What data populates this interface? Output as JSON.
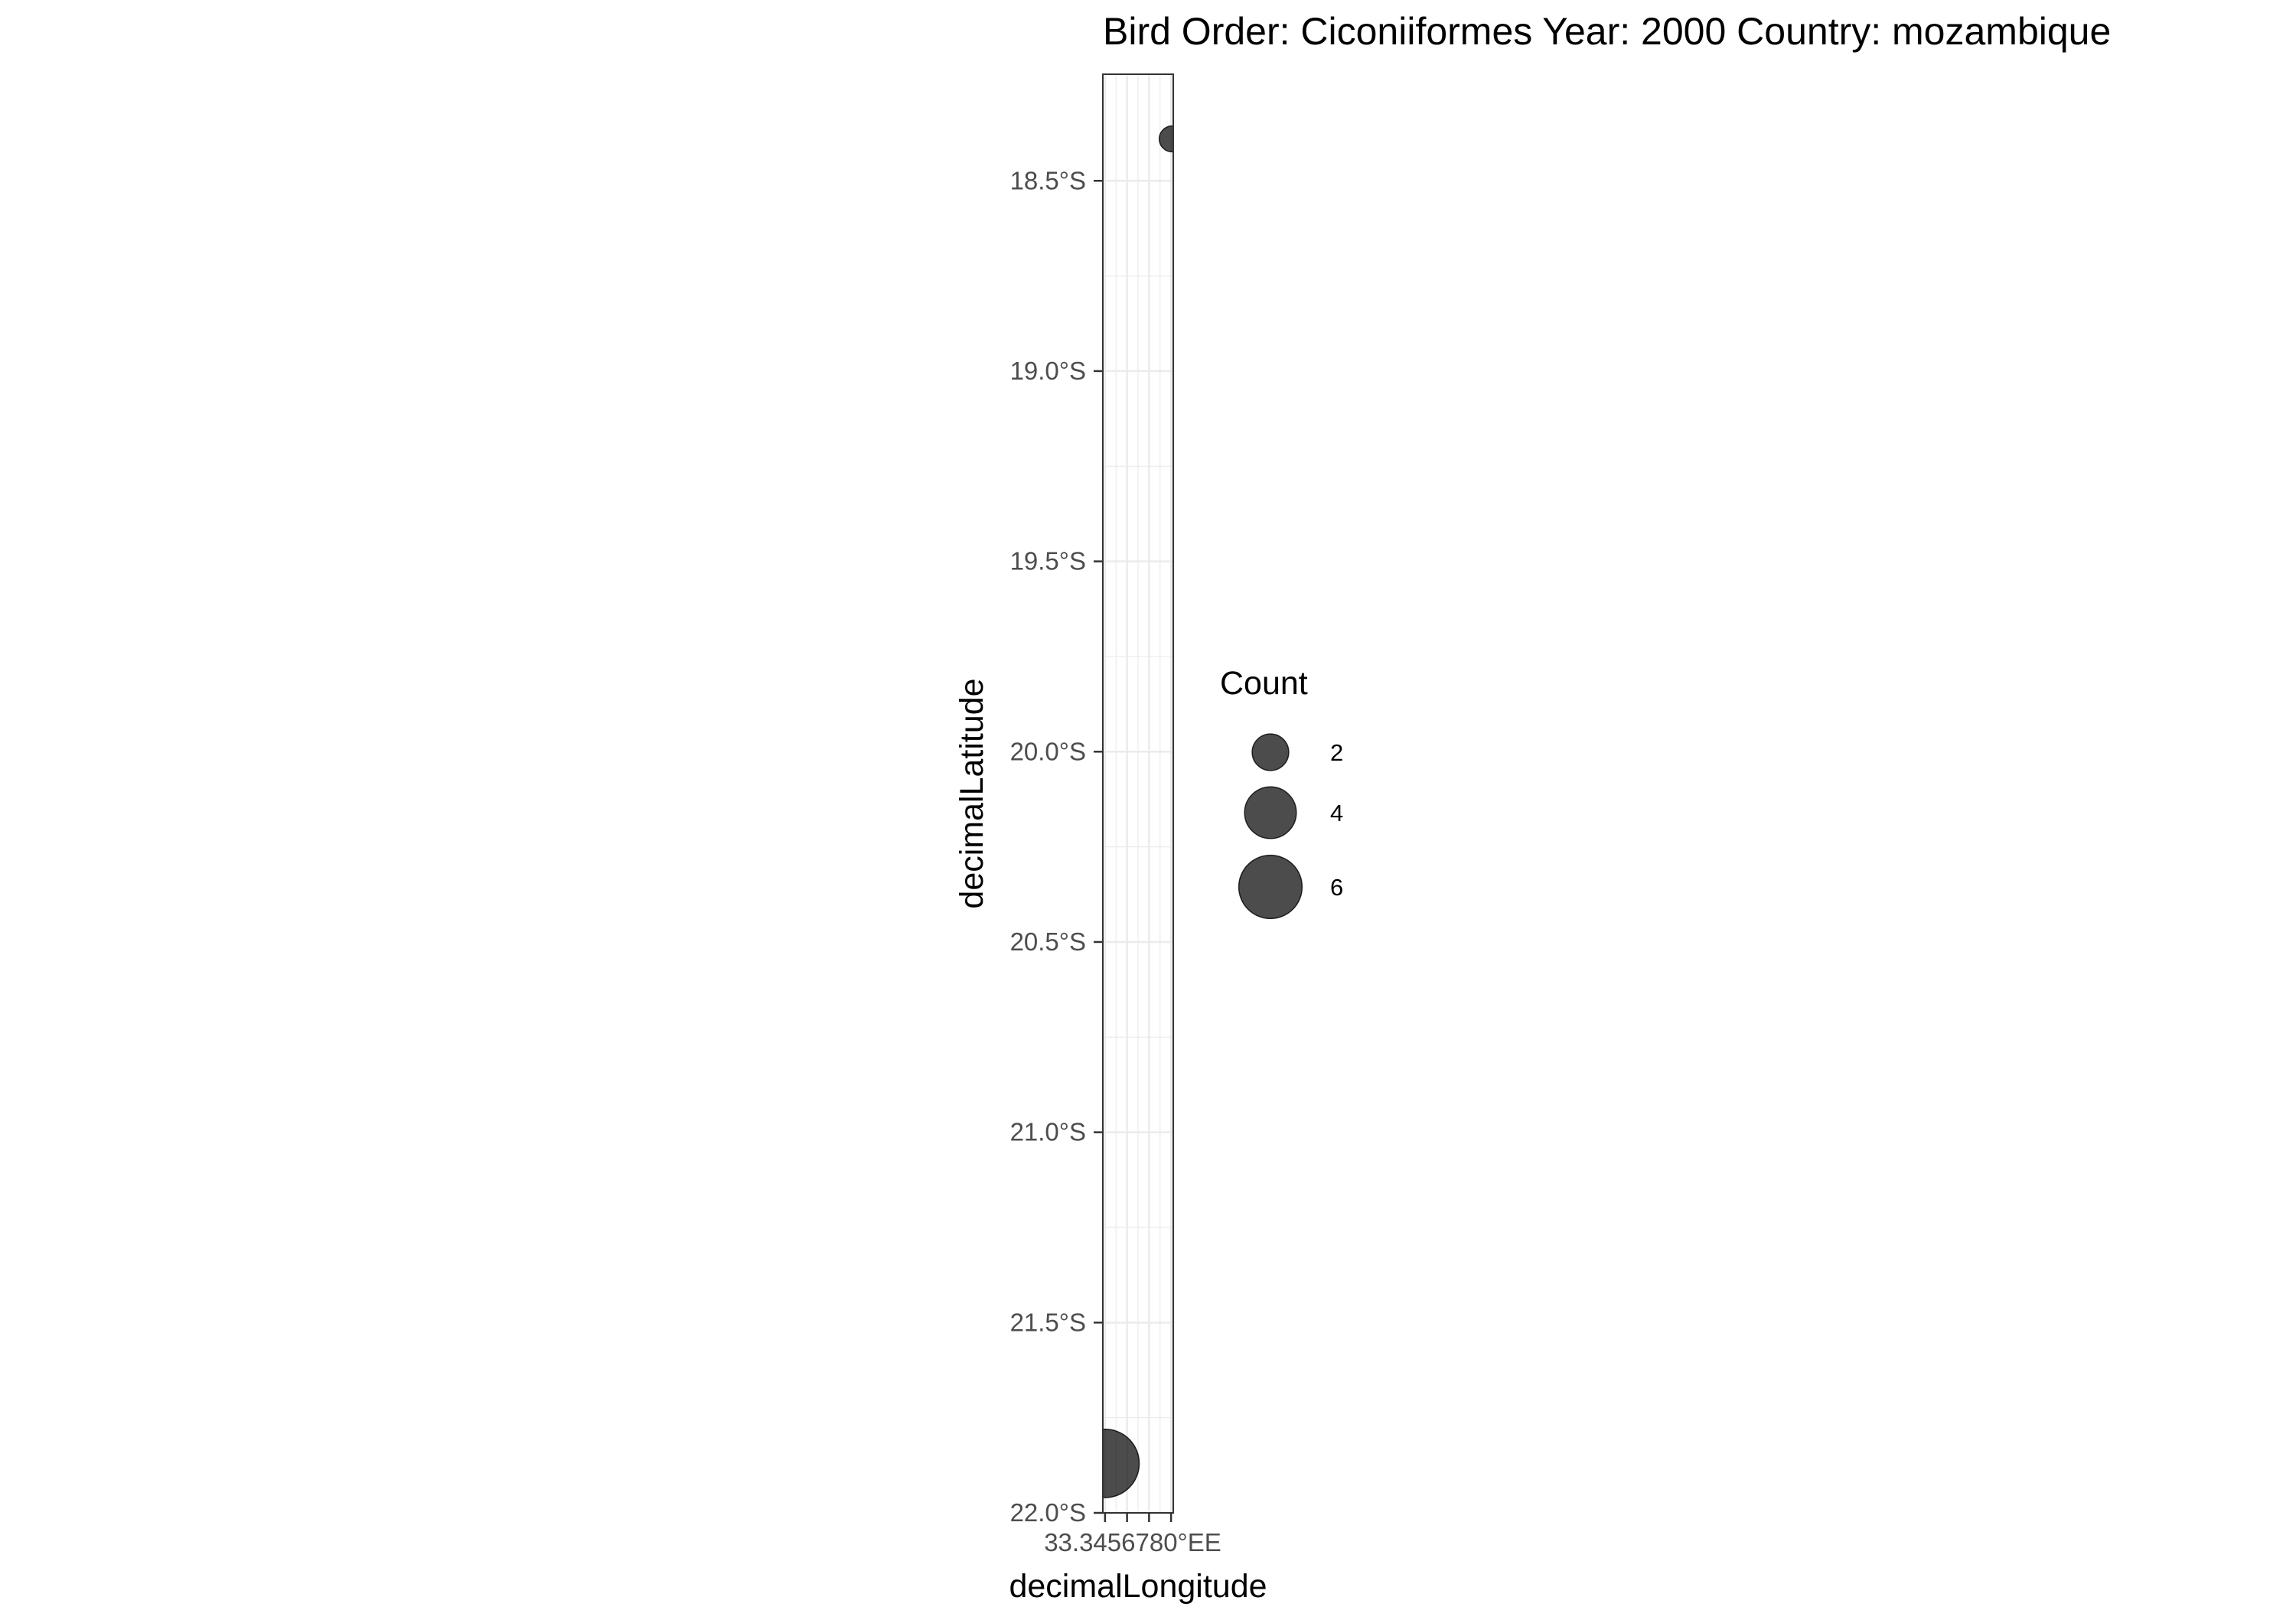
{
  "chart_data": {
    "type": "scatter",
    "title": "Bird Order: Ciconiiformes Year: 2000 Country: mozambique",
    "xlabel": "decimalLongitude",
    "ylabel": "decimalLatitude",
    "ylim": [
      -22.0,
      -18.22
    ],
    "xlim": [
      34.998,
      35.062
    ],
    "y_ticks": [
      {
        "value": -18.5,
        "label": "18.5°S"
      },
      {
        "value": -19.0,
        "label": "19.0°S"
      },
      {
        "value": -19.5,
        "label": "19.5°S"
      },
      {
        "value": -20.0,
        "label": "20.0°S"
      },
      {
        "value": -20.5,
        "label": "20.5°S"
      },
      {
        "value": -21.0,
        "label": "21.0°S"
      },
      {
        "value": -21.5,
        "label": "21.5°S"
      },
      {
        "value": -22.0,
        "label": "22.0°S"
      }
    ],
    "x_ticks": [
      {
        "value": 35.0,
        "label": "35.00°E"
      },
      {
        "value": 35.02,
        "label": "35.02°E"
      },
      {
        "value": 35.04,
        "label": "35.04°E"
      },
      {
        "value": 35.06,
        "label": "35.06°E"
      }
    ],
    "x_tick_display": "33.3456780°EE",
    "points": [
      {
        "x": 35.061,
        "y": -18.39,
        "count": 1
      },
      {
        "x": 35.0,
        "y": -21.87,
        "count": 7
      }
    ],
    "legend": {
      "title": "Count",
      "entries": [
        {
          "label": "2",
          "value": 2
        },
        {
          "label": "4",
          "value": 4
        },
        {
          "label": "6",
          "value": 6
        }
      ],
      "placement": "right"
    },
    "grid": true,
    "theme": "bw",
    "colors": {
      "point": "#000000",
      "point_alpha": 0.7,
      "grid": "#ebebeb",
      "panel_border": "#333333",
      "tick_text": "#4d4d4d"
    }
  }
}
